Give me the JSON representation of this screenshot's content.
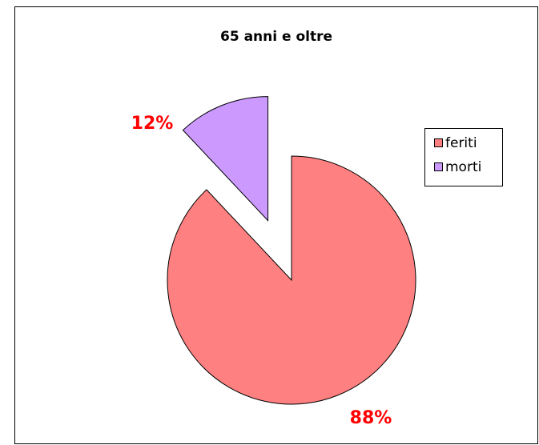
{
  "chart_data": {
    "type": "pie",
    "title": "65 anni e oltre",
    "categories": [
      "feriti",
      "morti"
    ],
    "values": [
      88,
      12
    ],
    "value_labels": [
      "88%",
      "12%"
    ],
    "colors": [
      "#ff8080",
      "#cc99ff"
    ],
    "exploded": [
      false,
      true
    ],
    "legend": "right"
  }
}
